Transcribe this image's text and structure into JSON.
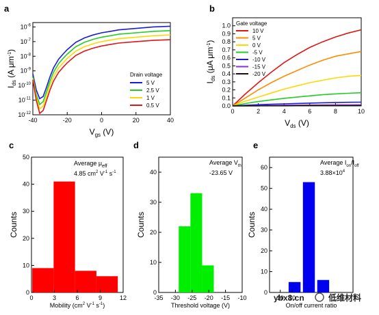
{
  "chart_data": [
    {
      "panel": "a",
      "type": "line",
      "xlabel": "V",
      "xlabel_sub": "gs",
      "xlabel_unit": " (V)",
      "ylabel": "I",
      "ylabel_sub": "ds",
      "ylabel_unit": " (A μm",
      "xlim": [
        -40,
        40
      ],
      "x_ticks": [
        "-40",
        "-20",
        "0",
        "20",
        "40"
      ],
      "ylim_log10": [
        -12,
        -5.7
      ],
      "y_ticks": [
        "10-12",
        "10-11",
        "10-10",
        "10-9",
        "10-8",
        "10-7",
        "10-6"
      ],
      "legend_title": "Drain voltage",
      "x": [
        -40,
        -38,
        -36,
        -34,
        -32,
        -30,
        -28,
        -25,
        -22,
        -20,
        -15,
        -10,
        -5,
        0,
        5,
        10,
        20,
        30,
        40
      ],
      "series": [
        {
          "name": "5 V",
          "color": "#1a1adb",
          "log_values": [
            -9.2,
            -10.3,
            -10.9,
            -10.75,
            -10.1,
            -9.4,
            -8.8,
            -8.2,
            -7.8,
            -7.55,
            -7.05,
            -6.75,
            -6.55,
            -6.4,
            -6.3,
            -6.2,
            -6.1,
            -6.0,
            -5.95
          ]
        },
        {
          "name": "2.5 V",
          "color": "#22cc22",
          "log_values": [
            -9.4,
            -10.6,
            -11.3,
            -11.1,
            -10.4,
            -9.7,
            -9.1,
            -8.5,
            -8.1,
            -7.85,
            -7.35,
            -7.05,
            -6.85,
            -6.7,
            -6.6,
            -6.5,
            -6.4,
            -6.3,
            -6.25
          ]
        },
        {
          "name": "1 V",
          "color": "#ffd700",
          "log_values": [
            -9.5,
            -10.8,
            -11.6,
            -11.4,
            -10.7,
            -9.95,
            -9.4,
            -8.8,
            -8.4,
            -8.15,
            -7.65,
            -7.35,
            -7.15,
            -7.0,
            -6.9,
            -6.8,
            -6.7,
            -6.6,
            -6.55
          ]
        },
        {
          "name": "0.5 V",
          "color": "#e01414",
          "log_values": [
            -9.6,
            -11.0,
            -11.9,
            -11.7,
            -11.0,
            -10.3,
            -9.7,
            -9.1,
            -8.7,
            -8.45,
            -7.95,
            -7.65,
            -7.45,
            -7.3,
            -7.2,
            -7.1,
            -7.0,
            -6.92,
            -6.87
          ]
        }
      ]
    },
    {
      "panel": "b",
      "type": "line",
      "xlabel": "V",
      "xlabel_sub": "ds",
      "xlabel_unit": " (V)",
      "ylabel": "I",
      "ylabel_sub": "ds",
      "ylabel_unit": " (μA μm",
      "xlim": [
        0,
        10
      ],
      "ylim": [
        0,
        1.1
      ],
      "x_ticks": [
        "0",
        "2",
        "4",
        "6",
        "8",
        "10"
      ],
      "y_ticks": [
        "0.0",
        "0.1",
        "0.2",
        "0.3",
        "0.4",
        "0.5",
        "0.6",
        "0.7",
        "0.8",
        "0.9",
        "1.0"
      ],
      "legend_title": "Gate voltage",
      "x": [
        0,
        1,
        2,
        3,
        4,
        5,
        6,
        7,
        8,
        9,
        10
      ],
      "series": [
        {
          "name": "10 V",
          "color": "#e01414",
          "values": [
            0,
            0.15,
            0.29,
            0.42,
            0.54,
            0.64,
            0.73,
            0.8,
            0.86,
            0.91,
            0.95
          ]
        },
        {
          "name": "5 V",
          "color": "#ff8c00",
          "values": [
            0,
            0.1,
            0.2,
            0.29,
            0.37,
            0.44,
            0.51,
            0.57,
            0.62,
            0.65,
            0.68
          ]
        },
        {
          "name": "0 V",
          "color": "#ffd700",
          "values": [
            0,
            0.06,
            0.11,
            0.16,
            0.21,
            0.25,
            0.29,
            0.32,
            0.35,
            0.37,
            0.38
          ]
        },
        {
          "name": "-5 V",
          "color": "#22cc22",
          "values": [
            0,
            0.03,
            0.055,
            0.075,
            0.095,
            0.11,
            0.125,
            0.14,
            0.15,
            0.158,
            0.165
          ]
        },
        {
          "name": "-10 V",
          "color": "#1a1adb",
          "values": [
            0,
            0.008,
            0.015,
            0.021,
            0.026,
            0.031,
            0.035,
            0.039,
            0.042,
            0.045,
            0.047
          ]
        },
        {
          "name": "-15 V",
          "color": "#8a2be2",
          "values": [
            0,
            0.002,
            0.004,
            0.006,
            0.008,
            0.009,
            0.01,
            0.011,
            0.012,
            0.013,
            0.014
          ]
        },
        {
          "name": "-20 V",
          "color": "#111111",
          "values": [
            0,
            0.0005,
            0.001,
            0.0015,
            0.002,
            0.0025,
            0.003,
            0.0035,
            0.004,
            0.0045,
            0.005
          ]
        }
      ]
    },
    {
      "panel": "c",
      "type": "bar",
      "color": "#ff0000",
      "xlabel": "Mobility (cm",
      "xlabel_tail": " s",
      "ylabel": "Counts",
      "xlim": [
        0,
        12
      ],
      "ylim": [
        0,
        50
      ],
      "x_ticks": [
        "0",
        "3",
        "6",
        "9",
        "12"
      ],
      "y_ticks": [
        "0",
        "10",
        "20",
        "30",
        "40",
        "50"
      ],
      "bin_width": 2.8,
      "bins": [
        1.5,
        4.3,
        7.1,
        9.9
      ],
      "values": [
        9,
        41,
        8,
        6
      ],
      "annotation": "Average μ",
      "annotation_sub": "eff",
      "annotation_value": "4.85 cm",
      "annotation_value_tail": " s"
    },
    {
      "panel": "d",
      "type": "bar",
      "color": "#00ee00",
      "xlabel": "Threshold voltage (V)",
      "ylabel": "Counts",
      "xlim": [
        -35,
        -10
      ],
      "ylim": [
        0,
        45
      ],
      "x_ticks": [
        "-35",
        "-30",
        "-25",
        "-20",
        "-15",
        "-10"
      ],
      "y_ticks": [
        "0",
        "10",
        "20",
        "30",
        "40"
      ],
      "bin_width": 3.5,
      "bins": [
        -27.25,
        -23.75,
        -20.25
      ],
      "values": [
        22,
        33,
        9
      ],
      "annotation": "Average V",
      "annotation_sub": "th",
      "annotation_value": "-23.65 V"
    },
    {
      "panel": "e",
      "type": "bar",
      "color": "#0000ee",
      "xlabel": "On/off current ratio",
      "ylabel": "Counts",
      "xlim": [
        0,
        7
      ],
      "ylim": [
        0,
        65
      ],
      "x_ticks": [
        "10",
        "10"
      ],
      "y_ticks": [
        "0",
        "10",
        "20",
        "30",
        "40",
        "50",
        "60"
      ],
      "bin_width": 1.0,
      "bins": [
        2.1,
        3.3,
        4.5
      ],
      "values": [
        5,
        53,
        6
      ],
      "annotation": "Average I",
      "annotation_sub": "on",
      "annotation_mid": "/I",
      "annotation_sub2": "off",
      "annotation_value": "3.88×10"
    }
  ],
  "panel_labels": [
    "a",
    "b",
    "c",
    "d",
    "e"
  ],
  "watermark": {
    "site": "ybx8.cn",
    "brand": "低维材料"
  }
}
